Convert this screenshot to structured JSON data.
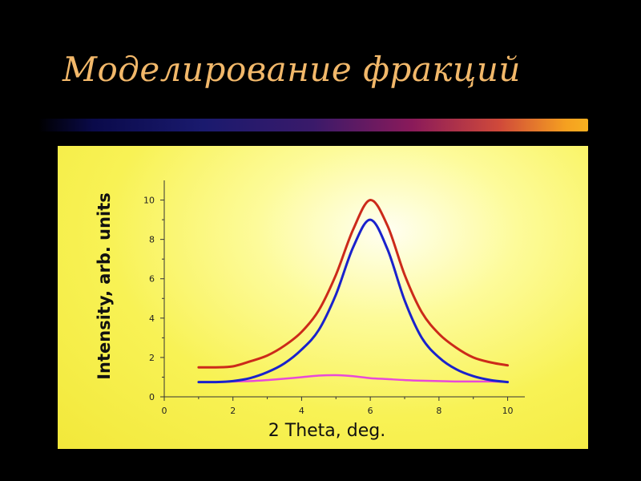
{
  "slide": {
    "title": "Моделирование фракций"
  },
  "chart_data": {
    "type": "line",
    "title": "",
    "xlabel": "2 Theta, deg.",
    "ylabel": "Intensity, arb. units",
    "xlim": [
      0,
      10.5
    ],
    "ylim": [
      0,
      11
    ],
    "xticks": [
      0,
      2,
      4,
      6,
      8,
      10
    ],
    "yticks": [
      0,
      2,
      4,
      6,
      8,
      10
    ],
    "grid": false,
    "colors": {
      "background": "#f5ec45",
      "axis": "#333333"
    },
    "series": [
      {
        "color": "#cc2a1a",
        "x": [
          1,
          1.5,
          2,
          2.5,
          3,
          3.5,
          4,
          4.5,
          5,
          5.5,
          6,
          6.5,
          7,
          7.5,
          8,
          8.5,
          9,
          9.5,
          10
        ],
        "y": [
          1.5,
          1.5,
          1.55,
          1.8,
          2.1,
          2.6,
          3.3,
          4.4,
          6.2,
          8.5,
          10,
          8.7,
          6.2,
          4.3,
          3.2,
          2.5,
          2.0,
          1.75,
          1.6
        ]
      },
      {
        "color": "#1a22cc",
        "x": [
          1,
          1.5,
          2,
          2.5,
          3,
          3.5,
          4,
          4.5,
          5,
          5.5,
          6,
          6.5,
          7,
          7.5,
          8,
          8.5,
          9,
          9.5,
          10
        ],
        "y": [
          0.75,
          0.75,
          0.8,
          0.95,
          1.25,
          1.7,
          2.4,
          3.4,
          5.2,
          7.6,
          9.0,
          7.5,
          4.9,
          3.0,
          2.0,
          1.4,
          1.05,
          0.85,
          0.75
        ]
      },
      {
        "color": "#e84ad8",
        "x": [
          1,
          1.5,
          2,
          2.5,
          3,
          3.5,
          4,
          4.5,
          5,
          5.5,
          6,
          6.5,
          7,
          7.5,
          8,
          8.5,
          9,
          9.5,
          10
        ],
        "y": [
          0.75,
          0.75,
          0.78,
          0.8,
          0.85,
          0.92,
          1.0,
          1.08,
          1.1,
          1.05,
          0.95,
          0.9,
          0.85,
          0.82,
          0.8,
          0.78,
          0.78,
          0.78,
          0.76
        ]
      }
    ]
  }
}
